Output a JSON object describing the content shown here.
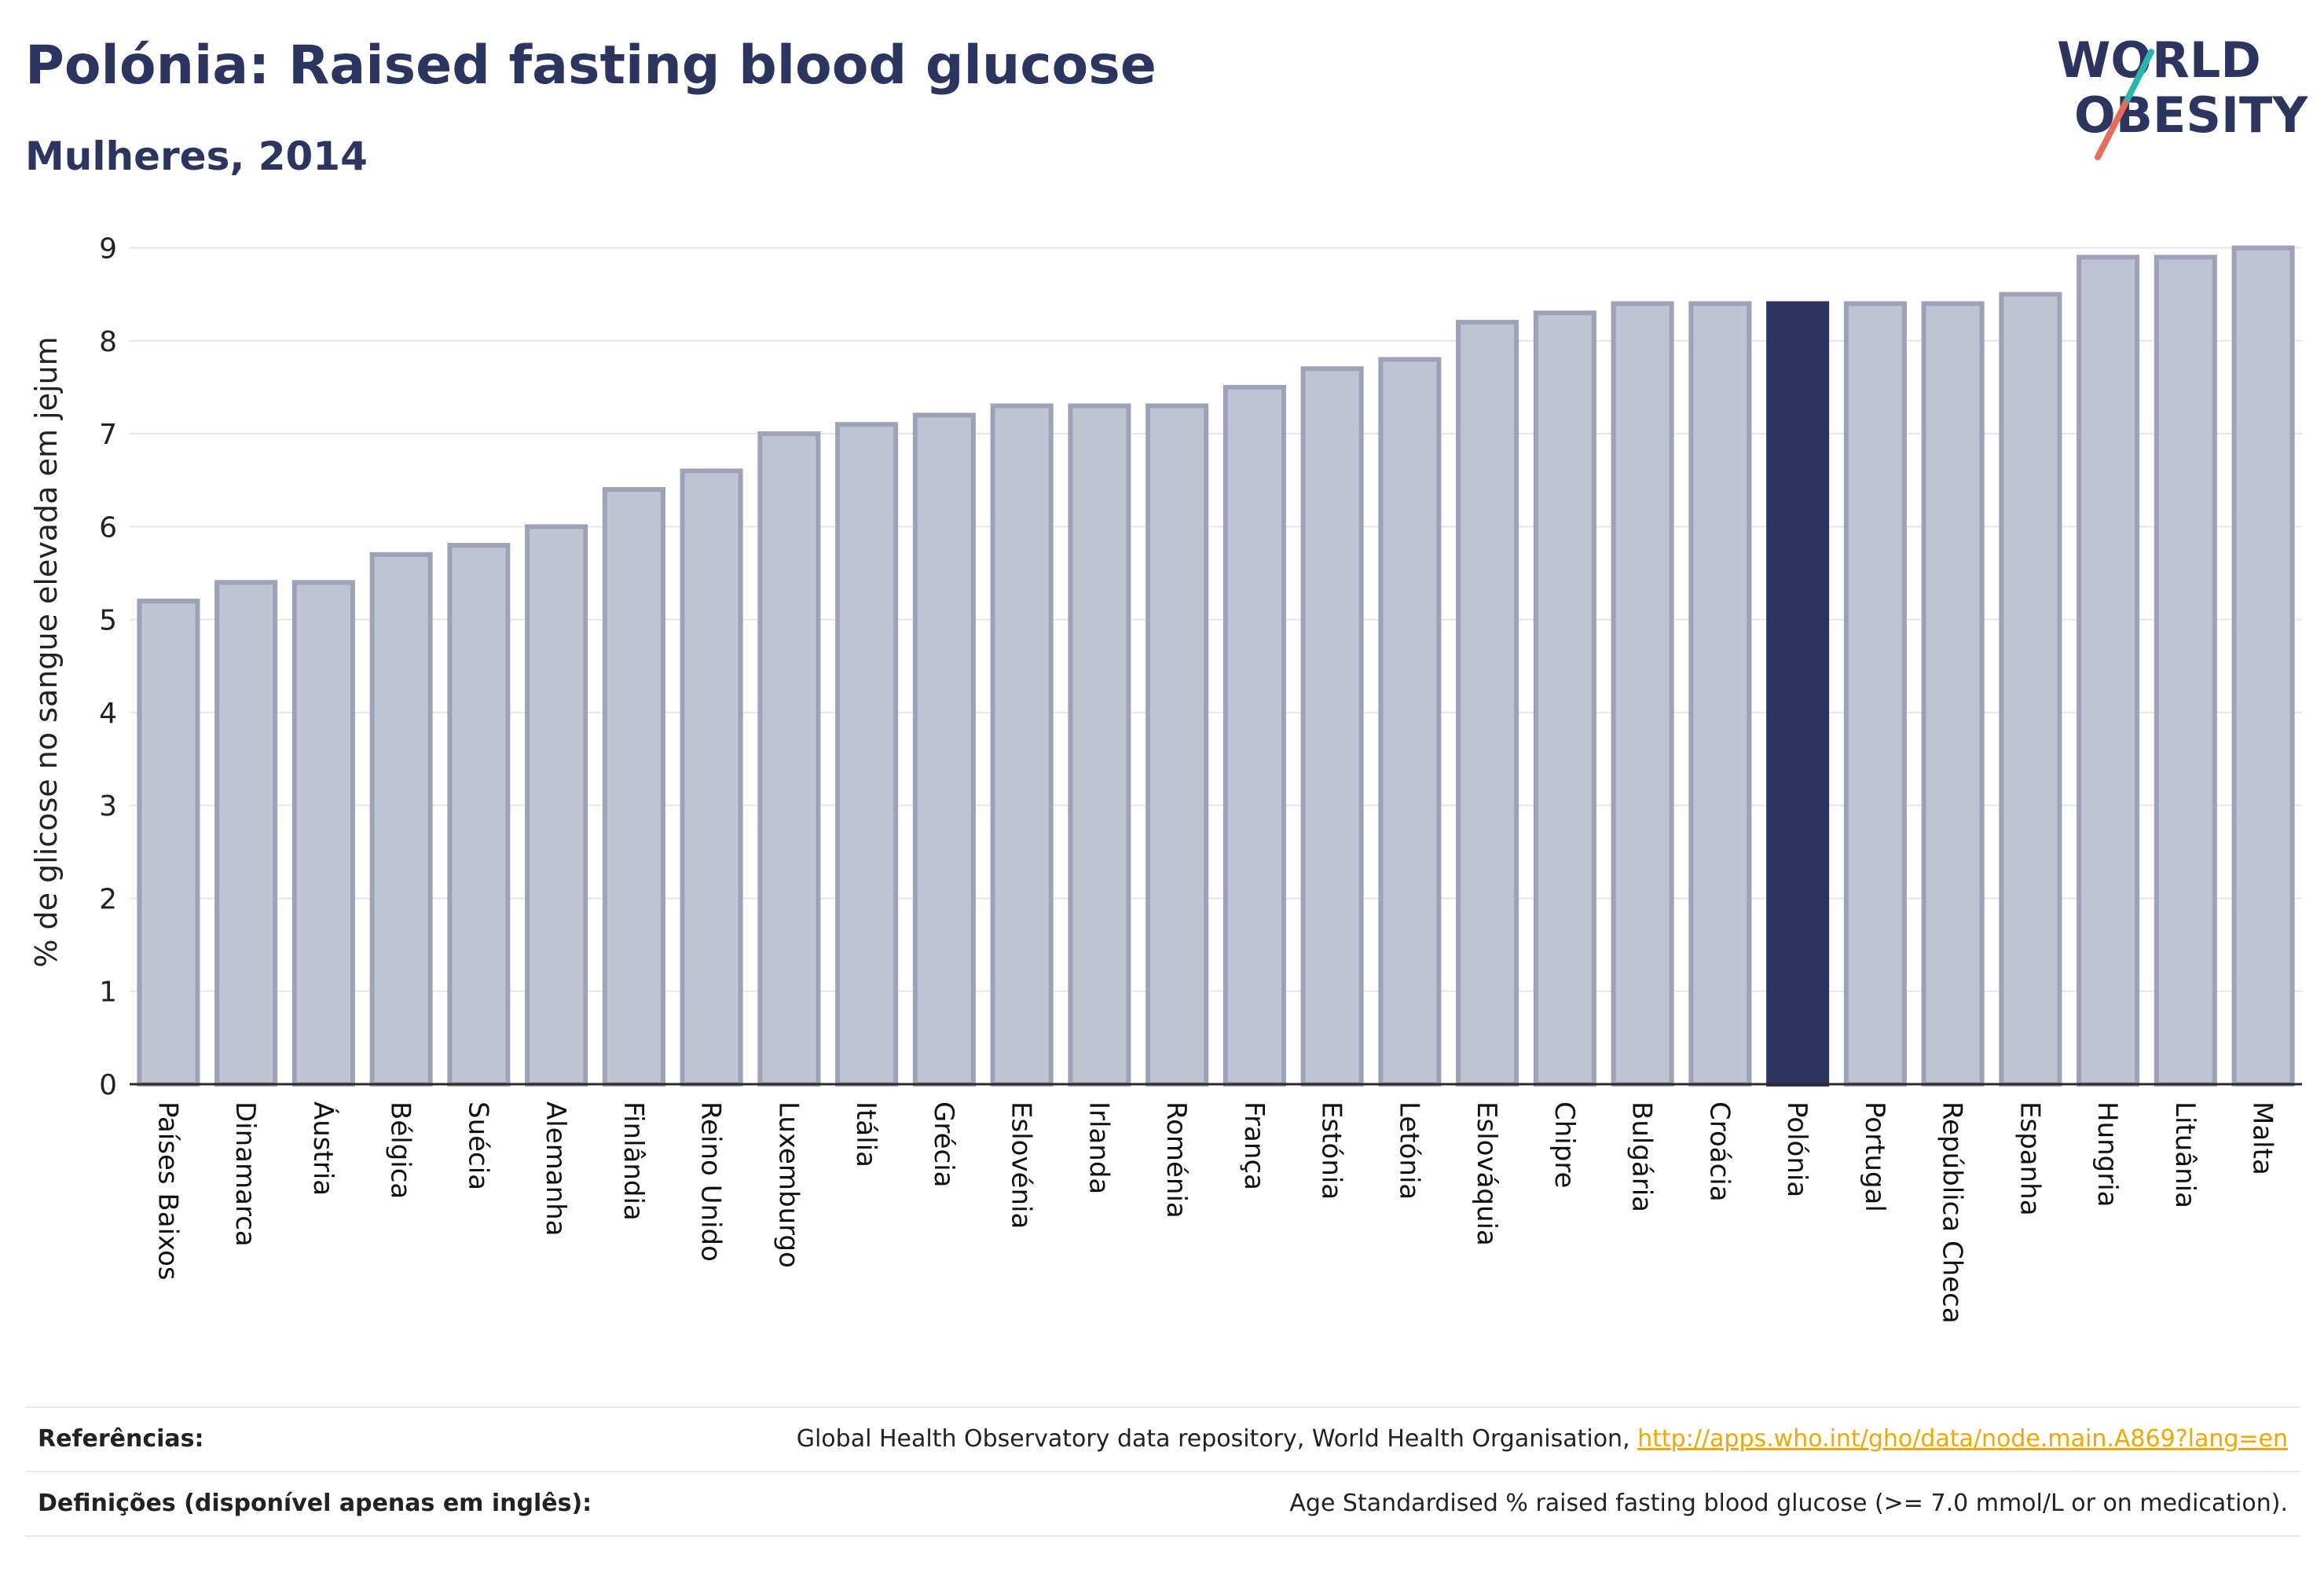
{
  "title": "Polónia: Raised fasting blood glucose",
  "subtitle": "Mulheres, 2014",
  "logo": {
    "line1": "WORLD",
    "line2": "OBESITY"
  },
  "colors": {
    "highlight": "#2c3560",
    "bar": "#c0c3d1",
    "bar_border": "#9da2b8",
    "text": "#2c3560"
  },
  "chart_data": {
    "type": "bar",
    "title": "Polónia: Raised fasting blood glucose",
    "subtitle": "Mulheres, 2014",
    "ylabel": "% de glicose no sangue elevada em jejum",
    "xlabel": "",
    "ylim": [
      0,
      9.3
    ],
    "yticks": [
      0,
      1,
      2,
      3,
      4,
      5,
      6,
      7,
      8,
      9
    ],
    "grid": true,
    "highlight": "Polónia",
    "categories": [
      "Países Baixos",
      "Dinamarca",
      "Áustria",
      "Bélgica",
      "Suécia",
      "Alemanha",
      "Finlândia",
      "Reino Unido",
      "Luxemburgo",
      "Itália",
      "Grécia",
      "Eslovénia",
      "Irlanda",
      "Roménia",
      "França",
      "Estónia",
      "Letónia",
      "Eslováquia",
      "Chipre",
      "Bulgária",
      "Croácia",
      "Polónia",
      "Portugal",
      "República Checa",
      "Espanha",
      "Hungria",
      "Lituânia",
      "Malta"
    ],
    "values": [
      5.2,
      5.4,
      5.4,
      5.7,
      5.8,
      6.0,
      6.4,
      6.6,
      7.0,
      7.1,
      7.2,
      7.3,
      7.3,
      7.3,
      7.5,
      7.7,
      7.8,
      8.2,
      8.3,
      8.4,
      8.4,
      8.4,
      8.4,
      8.4,
      8.5,
      8.9,
      8.9,
      9.0
    ]
  },
  "footer": {
    "references_label": "Referências:",
    "references_text": "Global Health Observatory data repository, World Health Organisation, ",
    "references_link": "http://apps.who.int/gho/data/node.main.A869?lang=en",
    "definitions_label": "Definições (disponível apenas em inglês):",
    "definitions_text": "Age Standardised % raised fasting blood glucose (>= 7.0 mmol/L or on medication)."
  }
}
